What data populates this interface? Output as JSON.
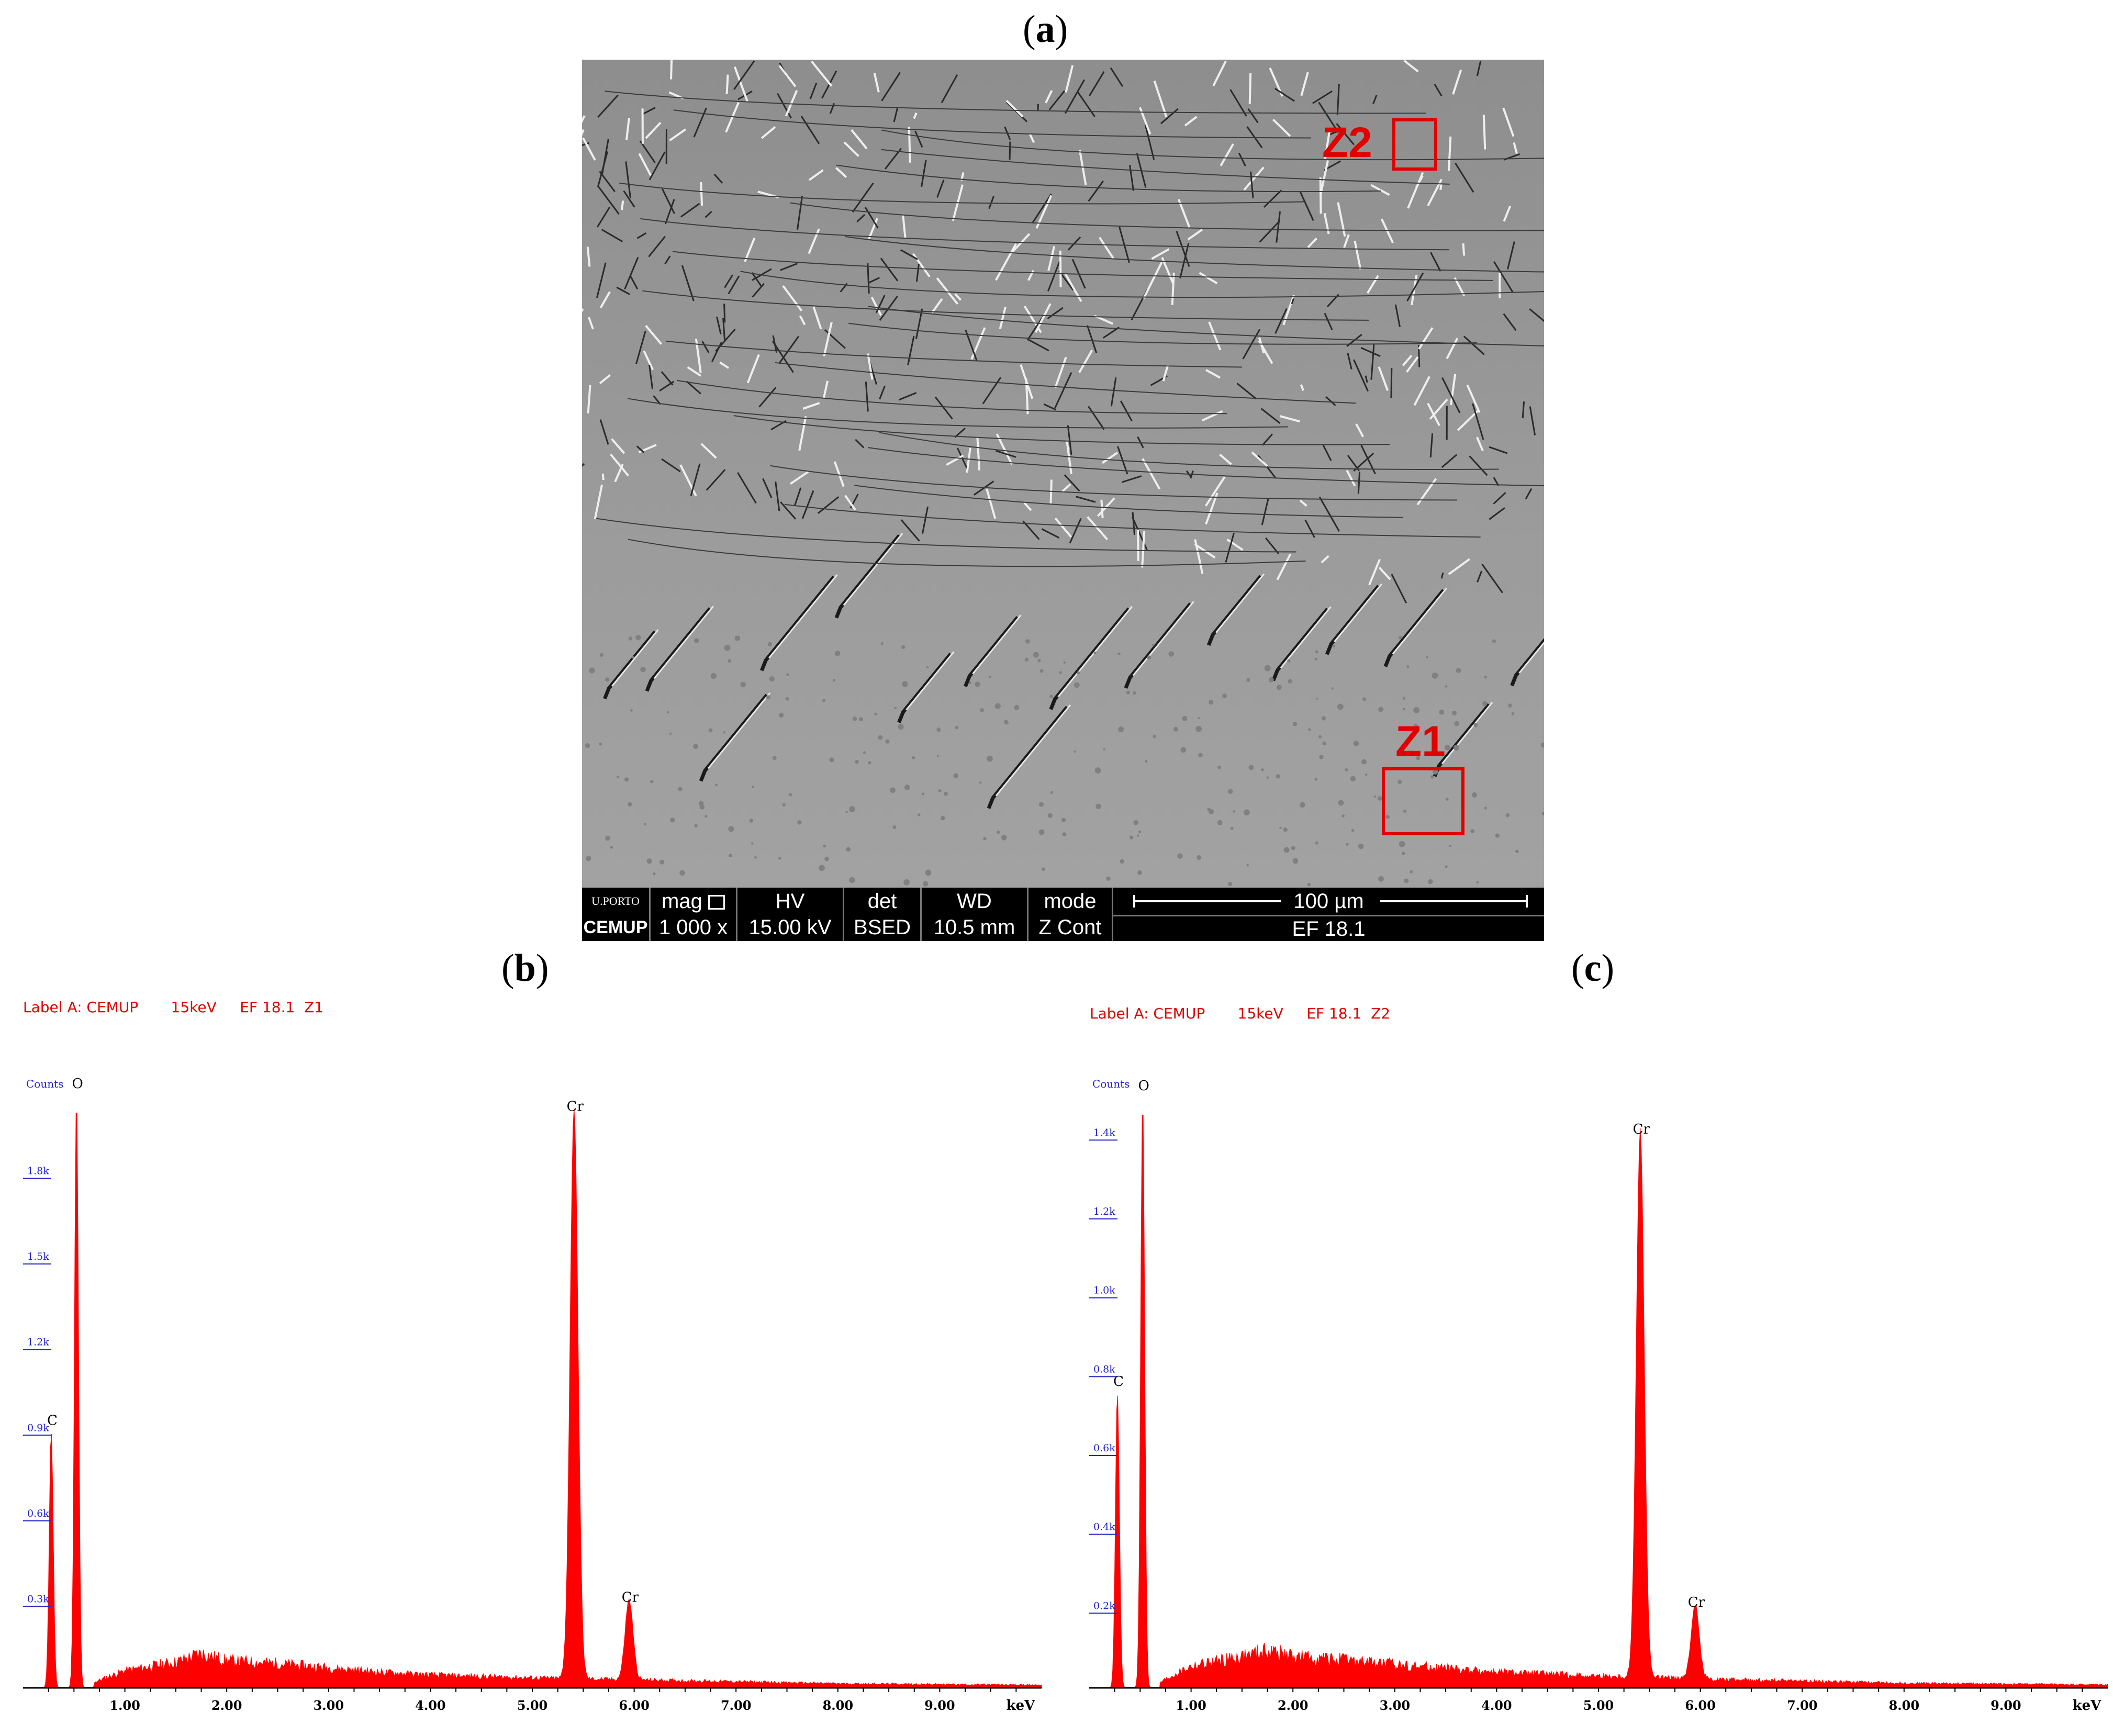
{
  "panel_a": {
    "label_open": "(",
    "label_letter": "a",
    "label_close": ")",
    "zones": {
      "z1": "Z1",
      "z2": "Z2"
    },
    "databar": {
      "logo_top": "U.PORTO",
      "logo_bottom": "CEMUP",
      "mag_label": "mag",
      "mag_value": "1 000 x",
      "hv_label": "HV",
      "hv_value": "15.00 kV",
      "det_label": "det",
      "det_value": "BSED",
      "wd_label": "WD",
      "wd_value": "10.5 mm",
      "mode_label": "mode",
      "mode_value": "Z Cont",
      "scale_label": "100 µm",
      "sample": "EF 18.1"
    }
  },
  "panel_b": {
    "label_open": "(",
    "label_letter": "b",
    "label_close": ")"
  },
  "panel_c": {
    "label_open": "(",
    "label_letter": "c",
    "label_close": ")"
  },
  "chart_data": [
    {
      "type": "area",
      "title": "Label A: CEMUP       15keV     EF 18.1  Z1",
      "ylabel": "Counts",
      "xlabel": "keV",
      "x_ticks": [
        "1.00",
        "2.00",
        "3.00",
        "4.00",
        "5.00",
        "6.00",
        "7.00",
        "8.00",
        "9.00"
      ],
      "y_ticks": [
        "0.3k",
        "0.6k",
        "0.9k",
        "1.2k",
        "1.5k",
        "1.8k"
      ],
      "xlim": [
        0,
        10.0
      ],
      "ylim": [
        0,
        2100
      ],
      "color": "#ff0000",
      "peaks": [
        {
          "label": "C",
          "x": 0.277,
          "y": 900
        },
        {
          "label": "O",
          "x": 0.525,
          "y": 2080
        },
        {
          "label": "Cr",
          "x": 5.41,
          "y": 2000
        },
        {
          "label": "Cr",
          "x": 5.95,
          "y": 280
        }
      ],
      "background": [
        [
          0.7,
          20
        ],
        [
          1.0,
          60
        ],
        [
          1.5,
          90
        ],
        [
          1.75,
          120
        ],
        [
          2.0,
          95
        ],
        [
          2.5,
          85
        ],
        [
          3.0,
          70
        ],
        [
          3.5,
          55
        ],
        [
          4.0,
          45
        ],
        [
          4.5,
          40
        ],
        [
          5.0,
          35
        ],
        [
          6.5,
          25
        ],
        [
          8.0,
          15
        ],
        [
          10.0,
          10
        ]
      ]
    },
    {
      "type": "area",
      "title": "Label A: CEMUP       15keV     EF 18.1  Z2",
      "ylabel": "Counts",
      "xlabel": "keV",
      "x_ticks": [
        "1.00",
        "2.00",
        "3.00",
        "4.00",
        "5.00",
        "6.00",
        "7.00",
        "8.00",
        "9.00"
      ],
      "y_ticks": [
        "0.2k",
        "0.4k",
        "0.6k",
        "0.8k",
        "1.0k",
        "1.2k",
        "1.4k"
      ],
      "xlim": [
        0,
        10.0
      ],
      "ylim": [
        0,
        1520
      ],
      "color": "#ff0000",
      "peaks": [
        {
          "label": "C",
          "x": 0.277,
          "y": 750
        },
        {
          "label": "O",
          "x": 0.525,
          "y": 1500
        },
        {
          "label": "Cr",
          "x": 5.41,
          "y": 1390
        },
        {
          "label": "Cr",
          "x": 5.95,
          "y": 190
        }
      ],
      "background": [
        [
          0.7,
          15
        ],
        [
          1.0,
          55
        ],
        [
          1.5,
          80
        ],
        [
          1.75,
          95
        ],
        [
          2.0,
          80
        ],
        [
          2.5,
          70
        ],
        [
          3.0,
          60
        ],
        [
          3.5,
          50
        ],
        [
          4.0,
          40
        ],
        [
          4.5,
          35
        ],
        [
          5.0,
          30
        ],
        [
          6.5,
          20
        ],
        [
          8.0,
          12
        ],
        [
          10.0,
          8
        ]
      ]
    }
  ]
}
